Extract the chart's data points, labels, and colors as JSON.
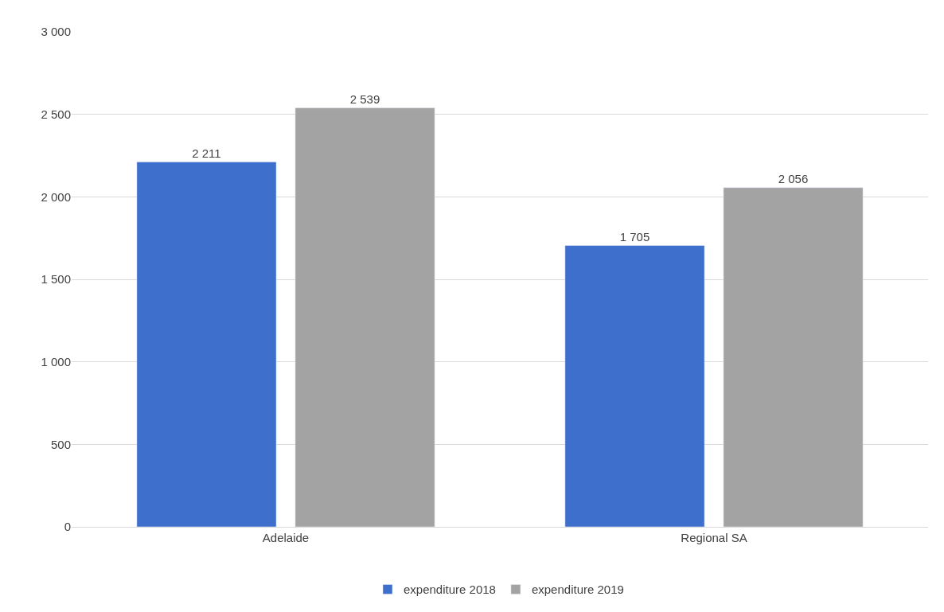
{
  "chart_data": {
    "type": "bar",
    "categories": [
      "Adelaide",
      "Regional SA"
    ],
    "series": [
      {
        "name": "expenditure 2018",
        "color": "#3f6fcc",
        "values": [
          2211,
          1705
        ],
        "value_labels": [
          "2 211",
          "1 705"
        ]
      },
      {
        "name": "expenditure 2019",
        "color": "#a3a3a3",
        "values": [
          2539,
          2056
        ],
        "value_labels": [
          "2 539",
          "2 056"
        ]
      }
    ],
    "ylim": [
      0,
      3000
    ],
    "yticks": [
      {
        "value": 0,
        "label": "0"
      },
      {
        "value": 500,
        "label": "500"
      },
      {
        "value": 1000,
        "label": "1 000"
      },
      {
        "value": 1500,
        "label": "1 500"
      },
      {
        "value": 2000,
        "label": "2 000"
      },
      {
        "value": 2500,
        "label": "2 500"
      },
      {
        "value": 3000,
        "label": "3 000"
      }
    ],
    "grid": "y",
    "legend": "bottom"
  }
}
